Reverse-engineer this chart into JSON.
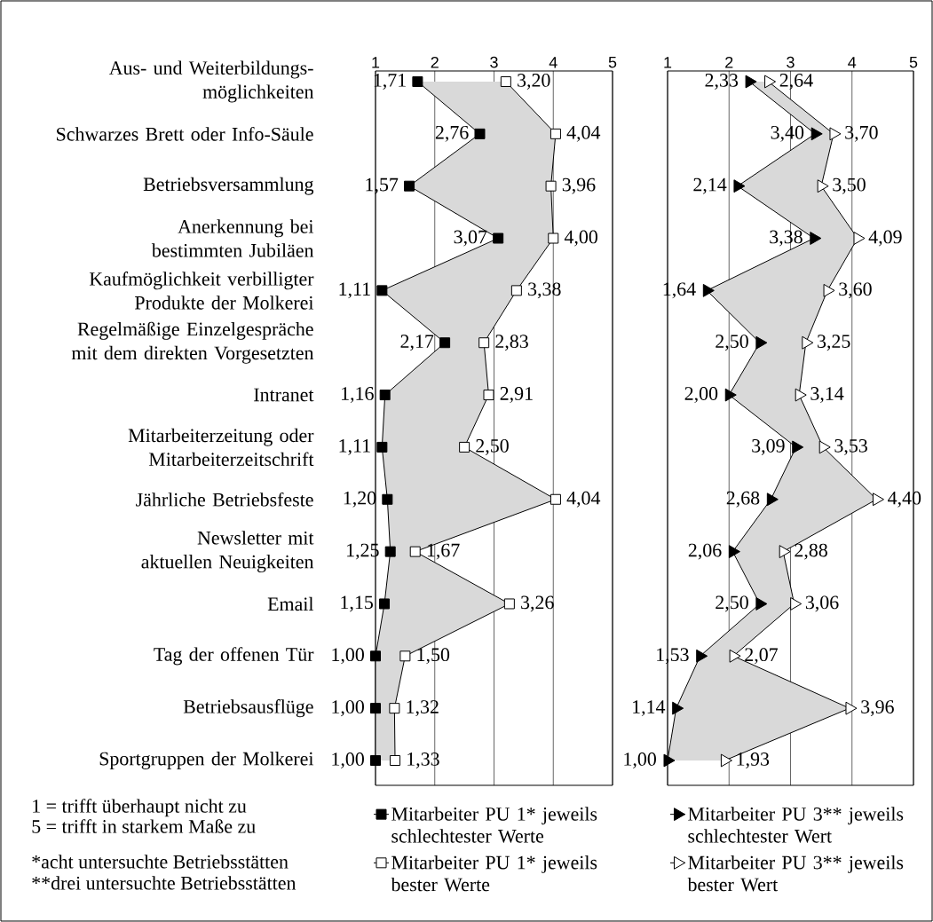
{
  "chart_data": [
    {
      "type": "line",
      "orientation": "horizontal",
      "categories": [
        "Aus- und Weiterbildungs-möglichkeiten",
        "Schwarzes Brett oder Info-Säule",
        "Betriebsversammlung",
        "Anerkennung bei bestimmten Jubiläen",
        "Kaufmöglichkeit verbilligter Produkte der Molkerei",
        "Regelmäßige Einzelgespräche mit dem direkten Vorgesetzten",
        "Intranet",
        "Mitarbeiterzeitung oder Mitarbeiterzeitschrift",
        "Jährliche Betriebsfeste",
        "Newsletter mit aktuellen Neuigkeiten",
        "Email",
        "Tag der offenen Tür",
        "Betriebsausflüge",
        "Sportgruppen der Molkerei"
      ],
      "xlim": [
        1,
        5
      ],
      "xticks": [
        1,
        2,
        3,
        4,
        5
      ],
      "grid": "x",
      "legend": "bottom",
      "series": [
        {
          "name": "Mitarbeiter PU 1* jeweils schlechtester Werte",
          "color": "#000000",
          "marker": "square",
          "values": [
            1.71,
            2.76,
            1.57,
            3.07,
            1.11,
            2.17,
            1.16,
            1.11,
            1.2,
            1.25,
            1.15,
            1.0,
            1.0,
            1.0
          ],
          "value_labels": [
            "1,71",
            "2,76",
            "1,57",
            "3,07",
            "1,11",
            "2,17",
            "1,16",
            "1,11",
            "1,20",
            "1,25",
            "1,15",
            "1,00",
            "1,00",
            "1,00"
          ]
        },
        {
          "name": "Mitarbeiter PU 1* jeweils bester Werte",
          "color": "#ffffff",
          "marker": "square",
          "values": [
            3.2,
            4.04,
            3.96,
            4.0,
            3.38,
            2.83,
            2.91,
            2.5,
            4.04,
            1.67,
            3.26,
            1.5,
            1.32,
            1.33
          ],
          "value_labels": [
            "3,20",
            "4,04",
            "3,96",
            "4,00",
            "3,38",
            "2,83",
            "2,91",
            "2,50",
            "4,04",
            "1,67",
            "3,26",
            "1,50",
            "1,32",
            "1,33"
          ]
        }
      ],
      "annotations": [
        "1 = trifft  überhaupt nicht zu",
        "5 = trifft in starkem Maße zu",
        "*acht untersuchte Betriebsstätten",
        "**drei untersuchte Betriebsstätten"
      ]
    },
    {
      "type": "line",
      "orientation": "horizontal",
      "tick_labels": "x",
      "categories": [
        null,
        null,
        null,
        null,
        null,
        null,
        null,
        null,
        null,
        null,
        null,
        null,
        null,
        null
      ],
      "xlim": [
        1,
        5
      ],
      "xticks": [
        1,
        2,
        3,
        4,
        5
      ],
      "grid": "x",
      "legend": "bottom",
      "series": [
        {
          "name": "Mitarbeiter PU 3** jeweils schlechtester Wert",
          "color": "#000000",
          "marker": "triangle",
          "values": [
            2.33,
            3.4,
            2.14,
            3.38,
            1.64,
            2.5,
            2.0,
            3.09,
            2.68,
            2.06,
            2.5,
            1.53,
            1.14,
            1.0
          ],
          "value_labels": [
            "2,33",
            "3,40",
            "2,14",
            "3,38",
            "1,64",
            "2,50",
            "2,00",
            "3,09",
            "2,68",
            "2,06",
            "2,50",
            "1,53",
            "1,14",
            "1,00"
          ]
        },
        {
          "name": "Mitarbeiter PU 3** jeweils bester Wert",
          "color": "#ffffff",
          "marker": "triangle",
          "values": [
            2.64,
            3.7,
            3.5,
            4.09,
            3.6,
            3.25,
            3.14,
            3.53,
            4.4,
            2.88,
            3.06,
            2.07,
            3.96,
            1.93
          ],
          "value_labels": [
            "2,64",
            "3,70",
            "3,50",
            "4,09",
            "3,60",
            "3,25",
            "3,14",
            "3,53",
            "4,40",
            "2,88",
            "3,06",
            "2,07",
            "3,96",
            "1,93"
          ]
        }
      ]
    }
  ]
}
